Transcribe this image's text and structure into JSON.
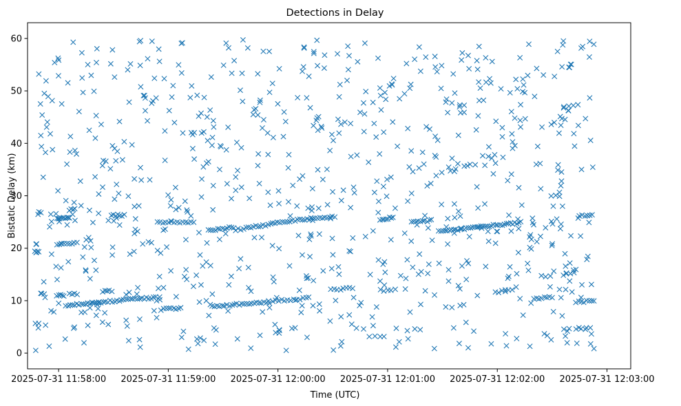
{
  "chart_data": {
    "type": "scatter",
    "title": "Detections in Delay",
    "xlabel": "Time (UTC)",
    "ylabel": "Bistatic Delay (km)",
    "marker": "x",
    "marker_color": "#1f77b4",
    "x_unit": "seconds after 2025-07-31 11:57:00 UTC",
    "xlim": [
      43,
      373
    ],
    "ylim": [
      -3,
      63
    ],
    "x_ticks": [
      {
        "value": 60,
        "label": "2025-07-31 11:58:00"
      },
      {
        "value": 120,
        "label": "2025-07-31 11:59:00"
      },
      {
        "value": 180,
        "label": "2025-07-31 12:00:00"
      },
      {
        "value": 240,
        "label": "2025-07-31 12:01:00"
      },
      {
        "value": 300,
        "label": "2025-07-31 12:02:00"
      },
      {
        "value": 360,
        "label": "2025-07-31 12:03:00"
      }
    ],
    "y_ticks": [
      {
        "value": 0,
        "label": "0"
      },
      {
        "value": 10,
        "label": "10"
      },
      {
        "value": 20,
        "label": "20"
      },
      {
        "value": 30,
        "label": "30"
      },
      {
        "value": 40,
        "label": "40"
      },
      {
        "value": 50,
        "label": "50"
      },
      {
        "value": 60,
        "label": "60"
      }
    ],
    "grid": false,
    "track_segments": [
      {
        "x0": 47,
        "x1": 49,
        "y0": 19.3,
        "y1": 19.3,
        "n": 5
      },
      {
        "x0": 59,
        "x1": 66,
        "y0": 25.6,
        "y1": 25.8,
        "n": 10
      },
      {
        "x0": 66,
        "x1": 69,
        "y0": 27.3,
        "y1": 27.5,
        "n": 4
      },
      {
        "x0": 59,
        "x1": 63,
        "y0": 11.0,
        "y1": 11.0,
        "n": 5
      },
      {
        "x0": 64,
        "x1": 82,
        "y0": 9.0,
        "y1": 9.8,
        "n": 16
      },
      {
        "x0": 66,
        "x1": 70,
        "y0": 11.3,
        "y1": 11.3,
        "n": 4
      },
      {
        "x0": 59,
        "x1": 70,
        "y0": 20.6,
        "y1": 21.1,
        "n": 9
      },
      {
        "x0": 82,
        "x1": 113,
        "y0": 9.7,
        "y1": 10.6,
        "n": 26
      },
      {
        "x0": 84,
        "x1": 89,
        "y0": 11.8,
        "y1": 11.9,
        "n": 5
      },
      {
        "x0": 90,
        "x1": 96,
        "y0": 26.3,
        "y1": 26.3,
        "n": 6
      },
      {
        "x0": 114,
        "x1": 134,
        "y0": 25.0,
        "y1": 25.0,
        "n": 14
      },
      {
        "x0": 116,
        "x1": 127,
        "y0": 8.3,
        "y1": 8.6,
        "n": 9
      },
      {
        "x0": 142,
        "x1": 156,
        "y0": 23.4,
        "y1": 24.0,
        "n": 12
      },
      {
        "x0": 144,
        "x1": 175,
        "y0": 8.9,
        "y1": 9.8,
        "n": 24
      },
      {
        "x0": 157,
        "x1": 176,
        "y0": 23.5,
        "y1": 24.6,
        "n": 15
      },
      {
        "x0": 177,
        "x1": 197,
        "y0": 9.9,
        "y1": 10.5,
        "n": 13
      },
      {
        "x0": 177,
        "x1": 211,
        "y0": 24.8,
        "y1": 26.1,
        "n": 26
      },
      {
        "x0": 209,
        "x1": 221,
        "y0": 12.1,
        "y1": 12.4,
        "n": 8
      },
      {
        "x0": 236,
        "x1": 243,
        "y0": 25.4,
        "y1": 25.9,
        "n": 8
      },
      {
        "x0": 253,
        "x1": 264,
        "y0": 24.9,
        "y1": 25.3,
        "n": 10
      },
      {
        "x0": 236,
        "x1": 244,
        "y0": 12.0,
        "y1": 12.0,
        "n": 5
      },
      {
        "x0": 268,
        "x1": 313,
        "y0": 23.2,
        "y1": 24.9,
        "n": 40
      },
      {
        "x0": 282,
        "x1": 285,
        "y0": 35.7,
        "y1": 35.9,
        "n": 3
      },
      {
        "x0": 299,
        "x1": 308,
        "y0": 11.5,
        "y1": 12.2,
        "n": 6
      },
      {
        "x0": 320,
        "x1": 330,
        "y0": 10.3,
        "y1": 10.7,
        "n": 8
      },
      {
        "x0": 345,
        "x1": 352,
        "y0": 26.3,
        "y1": 26.3,
        "n": 6
      },
      {
        "x0": 343,
        "x1": 353,
        "y0": 9.7,
        "y1": 10.0,
        "n": 8
      },
      {
        "x0": 336,
        "x1": 342,
        "y0": 15.0,
        "y1": 15.3,
        "n": 4
      },
      {
        "x0": 324,
        "x1": 329,
        "y0": 14.6,
        "y1": 14.6,
        "n": 3
      },
      {
        "x0": 339,
        "x1": 344,
        "y0": 47.2,
        "y1": 47.4,
        "n": 3
      },
      {
        "x0": 343,
        "x1": 351,
        "y0": 4.5,
        "y1": 4.8,
        "n": 4
      }
    ],
    "clutter_points": {
      "description": "approximately uniformly scattered detections",
      "count": 820,
      "x_range": [
        47,
        353
      ],
      "y_range": [
        0.5,
        59.8
      ]
    }
  }
}
